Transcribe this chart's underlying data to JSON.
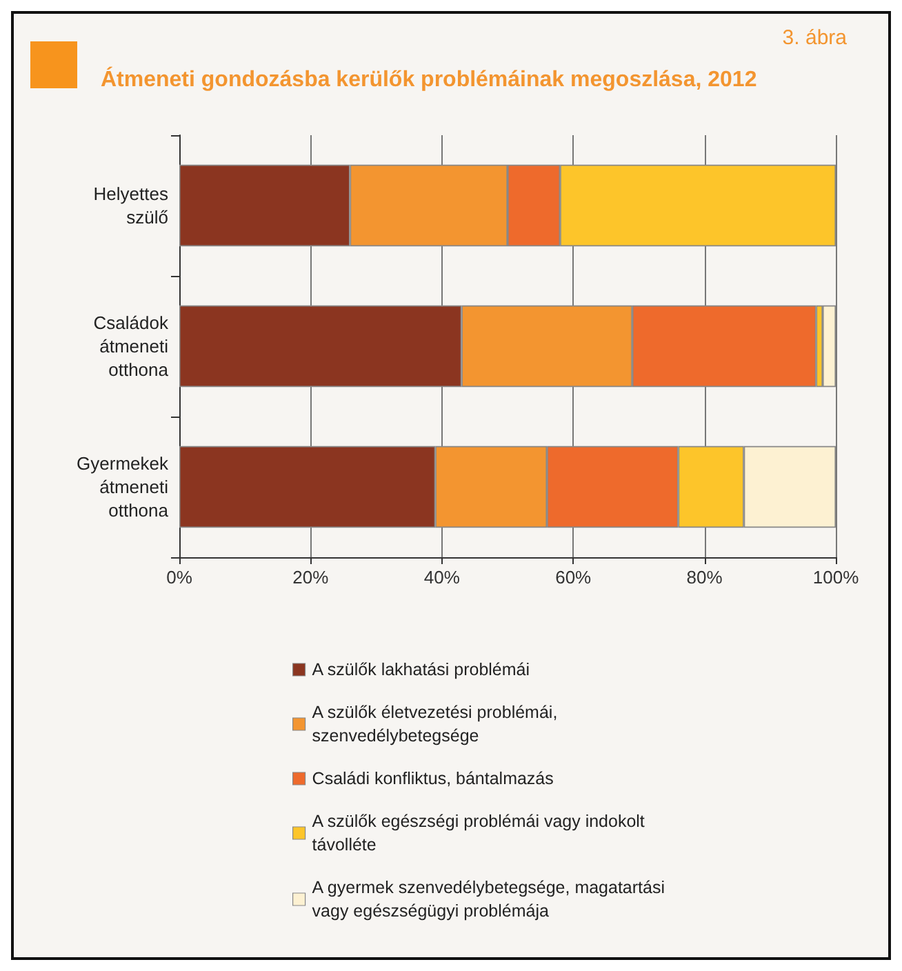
{
  "chart_data": {
    "type": "bar",
    "orientation": "horizontal",
    "stacked": true,
    "title": "Átmeneti gondozásba kerülők problémáinak megoszlása, 2012",
    "annotations": [
      "3. ábra"
    ],
    "categories": [
      "Helyettes\nszülő",
      "Családok\nátmeneti\notthona",
      "Gyermekek\nátmeneti\notthona"
    ],
    "series": [
      {
        "name": "A szülők lakhatási problémái",
        "color": "#8b3520",
        "values": [
          26,
          43,
          39
        ]
      },
      {
        "name": "A szülők életvezetési problémái,\nszenvedélybetegsége",
        "color": "#f39530",
        "values": [
          24,
          26,
          17
        ]
      },
      {
        "name": "Családi konfliktus, bántalmazás",
        "color": "#ee6a2c",
        "values": [
          8,
          28,
          20
        ]
      },
      {
        "name": "A szülők egészségi problémái vagy indokolt\ntávolléte",
        "color": "#fdc52a",
        "values": [
          42,
          1,
          10
        ]
      },
      {
        "name": "A gyermek szenvedélybetegsége, magatartási\nvagy egészségügyi problémája",
        "color": "#fdf1d2",
        "values": [
          0,
          2,
          14
        ]
      }
    ],
    "xlim": [
      0,
      100
    ],
    "xticks": [
      {
        "value": 0,
        "label": "0%"
      },
      {
        "value": 20,
        "label": "20%"
      },
      {
        "value": 40,
        "label": "40%"
      },
      {
        "value": 60,
        "label": "60%"
      },
      {
        "value": 80,
        "label": "80%"
      },
      {
        "value": 100,
        "label": "100%"
      }
    ],
    "grid": "x",
    "legend": "bottom"
  }
}
